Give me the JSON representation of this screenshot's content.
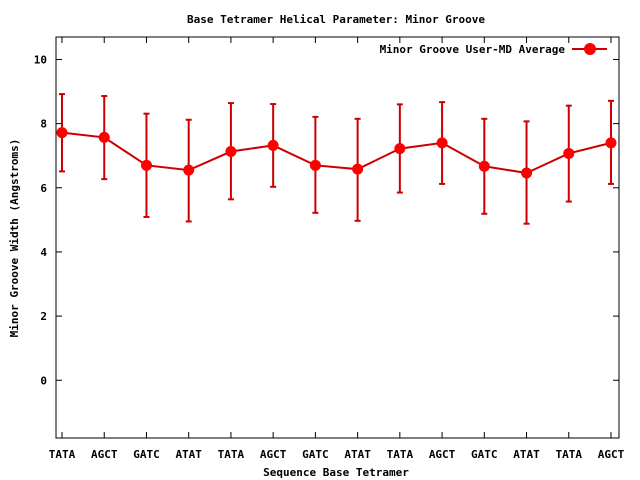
{
  "chart_data": {
    "type": "line",
    "title": "Base Tetramer Helical Parameter: Minor Groove",
    "xlabel": "Sequence Base Tetramer",
    "ylabel": "Minor Groove Width (Angstroms)",
    "categories": [
      "TATA",
      "AGCT",
      "GATC",
      "ATAT",
      "TATA",
      "AGCT",
      "GATC",
      "ATAT",
      "TATA",
      "AGCT",
      "GATC",
      "ATAT",
      "TATA",
      "AGCT"
    ],
    "series": [
      {
        "name": "Minor Groove User-MD Average",
        "color": "#ff0000",
        "line_color": "#cc0000",
        "values": [
          7.72,
          7.57,
          6.7,
          6.55,
          7.13,
          7.32,
          6.7,
          6.58,
          7.22,
          7.4,
          6.67,
          6.46,
          7.07,
          7.4
        ],
        "error_high": [
          8.92,
          8.86,
          8.31,
          8.12,
          8.64,
          8.61,
          8.21,
          8.15,
          8.6,
          8.67,
          8.15,
          8.07,
          8.56,
          8.71
        ],
        "error_low": [
          6.51,
          6.27,
          5.09,
          4.95,
          5.64,
          6.03,
          5.22,
          4.97,
          5.85,
          6.12,
          5.19,
          4.88,
          5.57,
          6.12
        ]
      }
    ],
    "ylim": [
      -1.8,
      10.7
    ],
    "yticks": [
      0,
      2,
      4,
      6,
      8,
      10
    ],
    "grid": false,
    "legend_position": "top-right"
  }
}
